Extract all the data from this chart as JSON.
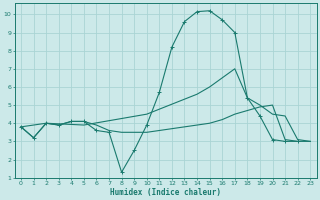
{
  "xlabel": "Humidex (Indice chaleur)",
  "bg_color": "#cce9e9",
  "grid_color": "#aad4d4",
  "line_color": "#1a7a6e",
  "xlim": [
    -0.5,
    23.5
  ],
  "ylim": [
    1,
    10.6
  ],
  "xticks": [
    0,
    1,
    2,
    3,
    4,
    5,
    6,
    7,
    8,
    9,
    10,
    11,
    12,
    13,
    14,
    15,
    16,
    17,
    18,
    19,
    20,
    21,
    22,
    23
  ],
  "yticks": [
    1,
    2,
    3,
    4,
    5,
    6,
    7,
    8,
    9,
    10
  ],
  "curve1_x": [
    0,
    1,
    2,
    3,
    4,
    5,
    6,
    7,
    8,
    9,
    10,
    11,
    12,
    13,
    14,
    15,
    16,
    17,
    18,
    19,
    20,
    21,
    22
  ],
  "curve1_y": [
    3.8,
    3.2,
    4.0,
    3.9,
    4.1,
    4.1,
    3.6,
    3.5,
    1.3,
    2.5,
    3.9,
    5.7,
    8.2,
    9.6,
    10.15,
    10.2,
    9.7,
    9.0,
    5.4,
    4.4,
    3.1,
    3.0,
    3.0
  ],
  "curve2_x": [
    0,
    2,
    5,
    10,
    14,
    15,
    17,
    18,
    19,
    20,
    21,
    22,
    23
  ],
  "curve2_y": [
    3.8,
    4.0,
    3.9,
    4.5,
    5.6,
    6.0,
    7.0,
    5.4,
    5.0,
    4.5,
    4.4,
    3.1,
    3.0
  ],
  "curve3_x": [
    0,
    1,
    2,
    3,
    4,
    5,
    6,
    7,
    8,
    9,
    10,
    11,
    12,
    13,
    14,
    15,
    16,
    17,
    18,
    19,
    20,
    21,
    22,
    23
  ],
  "curve3_y": [
    3.8,
    3.2,
    4.0,
    3.9,
    4.1,
    4.1,
    3.9,
    3.6,
    3.5,
    3.5,
    3.5,
    3.6,
    3.7,
    3.8,
    3.9,
    4.0,
    4.2,
    4.5,
    4.7,
    4.9,
    5.0,
    3.1,
    3.0,
    3.0
  ]
}
